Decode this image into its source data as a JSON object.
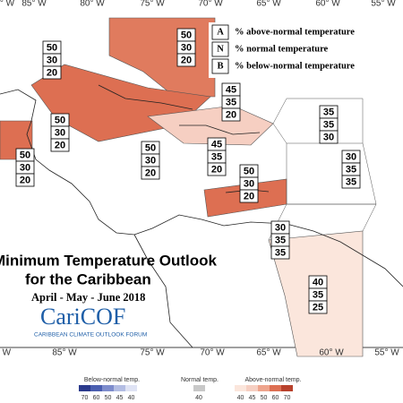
{
  "axes": {
    "top": [
      "° W",
      "85° W",
      "80° W",
      "75° W",
      "70° W",
      "65° W",
      "60° W",
      "55° W"
    ],
    "bottom": [
      "° W",
      "85° W",
      "75° W",
      "70° W",
      "65° W",
      "60° W",
      "55° W"
    ]
  },
  "legend": [
    {
      "key": "A",
      "text": "% above-normal temperature"
    },
    {
      "key": "N",
      "text": "% normal temperature"
    },
    {
      "key": "B",
      "text": "% below-normal temperature"
    }
  ],
  "regions": [
    [
      50,
      30,
      20
    ],
    [
      50,
      30,
      20
    ],
    [
      45,
      35,
      20
    ],
    [
      35,
      35,
      30
    ],
    [
      50,
      30,
      20
    ],
    [
      45,
      35,
      20
    ],
    [
      50,
      30,
      20
    ],
    [
      50,
      30,
      20
    ],
    [
      30,
      35,
      35
    ],
    [
      50,
      30,
      20
    ],
    [
      30,
      35,
      35
    ],
    [
      40,
      35,
      25
    ]
  ],
  "title": {
    "line1": "Minimum Temperature Outlook",
    "line2": "for the Caribbean",
    "period": "April - May - June 2018",
    "logo": "CariCOF",
    "logo_sub": "CARIBBEAN CLIMATE OUTLOOK FORUM"
  },
  "colorbar": {
    "below_label": "Below-normal temp.",
    "below_ticks": [
      70,
      60,
      50,
      45,
      40
    ],
    "normal_label": "Normal temp.",
    "normal_ticks": [
      40
    ],
    "above_label": "Above-normal temp.",
    "above_ticks": [
      40,
      45,
      50,
      60,
      70
    ]
  }
}
